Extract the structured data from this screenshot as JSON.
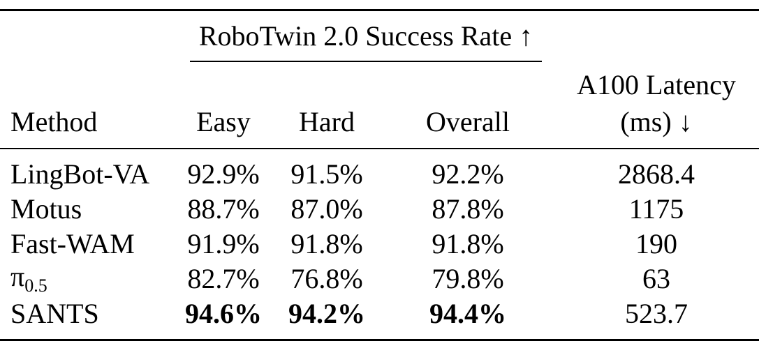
{
  "table": {
    "group_header": "RoboTwin 2.0 Success Rate ↑",
    "columns": [
      "Method",
      "Easy",
      "Hard",
      "Overall",
      [
        "A100 Latency",
        "(ms) ↓"
      ]
    ],
    "rows": [
      {
        "method": "LingBot-VA",
        "cells": [
          "92.9%",
          "91.5%",
          "92.2%",
          "2868.4"
        ]
      },
      {
        "method": "Motus",
        "cells": [
          "88.7%",
          "87.0%",
          "87.8%",
          "1175"
        ]
      },
      {
        "method": "Fast-WAM",
        "cells": [
          "91.9%",
          "91.8%",
          "91.8%",
          "190"
        ]
      },
      {
        "method": "π",
        "method_subscript": "0.5",
        "cells": [
          "82.7%",
          "76.8%",
          "79.8%",
          "63"
        ]
      },
      {
        "method": "SANTS",
        "cells": [
          "94.6%",
          "94.2%",
          "94.4%",
          "523.7"
        ],
        "best": true
      }
    ]
  }
}
